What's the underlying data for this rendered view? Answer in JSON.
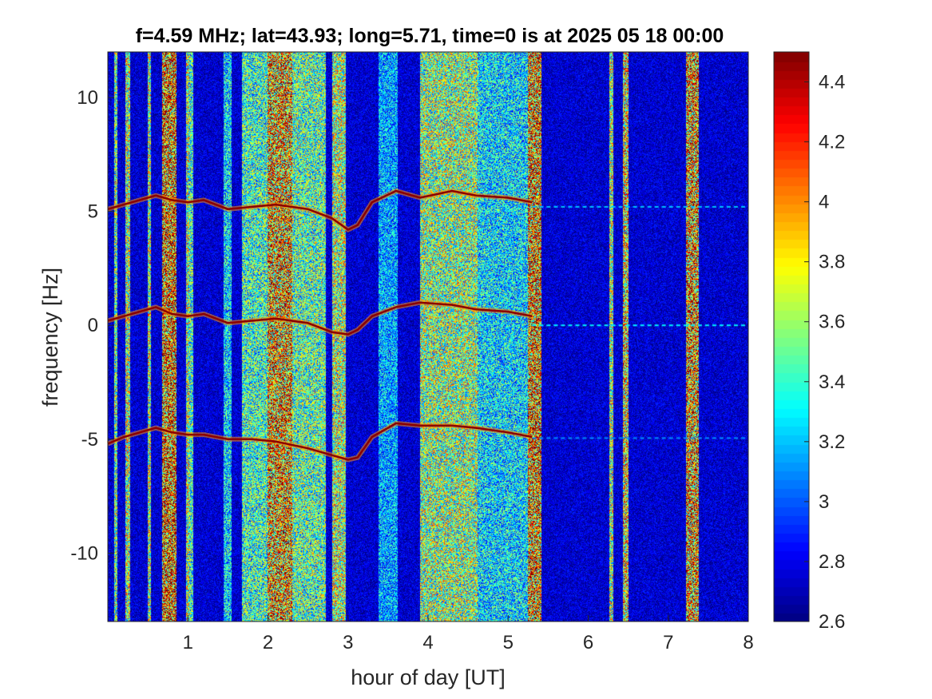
{
  "chart_data": {
    "type": "heatmap",
    "title": "f=4.59 MHz;  lat=43.93; long=5.71, time=0 is at 2025 05 18 00:00",
    "xlabel": "hour of day [UT]",
    "ylabel": "frequency [Hz]",
    "xlim": [
      0,
      8
    ],
    "ylim": [
      -13,
      12
    ],
    "x_ticks": [
      1,
      2,
      3,
      4,
      5,
      6,
      7,
      8
    ],
    "x_tick_labels": [
      "1",
      "2",
      "3",
      "4",
      "5",
      "6",
      "7",
      "8"
    ],
    "y_ticks": [
      -10,
      -5,
      0,
      5,
      10
    ],
    "y_tick_labels": [
      "-10",
      "-5",
      "0",
      "5",
      "10"
    ],
    "colorbar": {
      "colormap": "jet",
      "clim": [
        2.6,
        4.5
      ],
      "ticks": [
        2.6,
        2.8,
        3,
        3.2,
        3.4,
        3.6,
        3.8,
        4,
        4.2,
        4.4
      ],
      "tick_labels": [
        "2.6",
        "2.8",
        "3",
        "3.2",
        "3.4",
        "3.6",
        "3.8",
        "4",
        "4.2",
        "4.4"
      ]
    },
    "background_level": 2.75,
    "broadband_bands": [
      {
        "start": 0.08,
        "end": 0.12,
        "level": 3.5
      },
      {
        "start": 0.22,
        "end": 0.28,
        "level": 3.6
      },
      {
        "start": 0.5,
        "end": 0.54,
        "level": 3.6
      },
      {
        "start": 0.68,
        "end": 0.86,
        "level": 4.05
      },
      {
        "start": 0.98,
        "end": 1.02,
        "level": 3.6
      },
      {
        "start": 1.02,
        "end": 1.07,
        "level": 3.4
      },
      {
        "start": 1.45,
        "end": 1.55,
        "level": 3.25
      },
      {
        "start": 1.68,
        "end": 2.0,
        "level": 3.4
      },
      {
        "start": 2.0,
        "end": 2.3,
        "level": 3.95
      },
      {
        "start": 2.3,
        "end": 2.72,
        "level": 3.45
      },
      {
        "start": 2.8,
        "end": 2.97,
        "level": 3.6
      },
      {
        "start": 3.38,
        "end": 3.62,
        "level": 3.15
      },
      {
        "start": 3.9,
        "end": 4.62,
        "level": 3.55
      },
      {
        "start": 4.62,
        "end": 5.25,
        "level": 3.25
      },
      {
        "start": 5.25,
        "end": 5.42,
        "level": 4.0
      },
      {
        "start": 6.26,
        "end": 6.31,
        "level": 3.6
      },
      {
        "start": 6.43,
        "end": 6.5,
        "level": 3.75
      },
      {
        "start": 7.22,
        "end": 7.38,
        "level": 3.95
      }
    ],
    "series": [
      {
        "x": [
          0,
          0.2,
          0.4,
          0.6,
          0.8,
          1.0,
          1.2,
          1.5,
          1.8,
          2.1,
          2.5,
          2.8,
          3.0,
          3.12,
          3.3,
          3.6,
          3.9,
          4.3,
          4.6,
          5.0,
          5.3
        ],
        "y": [
          0.2,
          0.4,
          0.6,
          0.8,
          0.5,
          0.4,
          0.5,
          0.1,
          0.2,
          0.3,
          0.1,
          -0.3,
          -0.4,
          -0.2,
          0.4,
          0.8,
          1.0,
          0.9,
          0.7,
          0.6,
          0.4
        ]
      },
      {
        "x": [
          0,
          0.2,
          0.4,
          0.6,
          0.8,
          1.0,
          1.2,
          1.5,
          1.8,
          2.1,
          2.5,
          2.8,
          3.0,
          3.12,
          3.3,
          3.6,
          3.9,
          4.3,
          4.6,
          5.0,
          5.3
        ],
        "y": [
          5.1,
          5.3,
          5.5,
          5.7,
          5.5,
          5.4,
          5.5,
          5.1,
          5.2,
          5.3,
          5.1,
          4.7,
          4.2,
          4.4,
          5.4,
          5.9,
          5.6,
          5.9,
          5.7,
          5.6,
          5.4
        ]
      },
      {
        "x": [
          0,
          0.2,
          0.4,
          0.6,
          0.8,
          1.0,
          1.2,
          1.5,
          1.8,
          2.1,
          2.5,
          2.8,
          3.0,
          3.12,
          3.3,
          3.6,
          3.9,
          4.3,
          4.6,
          5.0,
          5.3
        ],
        "y": [
          -5.2,
          -4.9,
          -4.7,
          -4.5,
          -4.7,
          -4.8,
          -4.8,
          -5.0,
          -5.0,
          -5.1,
          -5.4,
          -5.7,
          -5.9,
          -5.8,
          -4.9,
          -4.3,
          -4.4,
          -4.4,
          -4.5,
          -4.7,
          -4.9
        ]
      }
    ],
    "dashed_traces": [
      {
        "y": 0,
        "x_start": 5.3,
        "x_end": 8.0,
        "level": 3.3
      },
      {
        "y": 5.2,
        "x_start": 5.3,
        "x_end": 8.0,
        "level": 3.2
      },
      {
        "y": -4.95,
        "x_start": 5.3,
        "x_end": 8.0,
        "level": 3.1
      }
    ]
  }
}
